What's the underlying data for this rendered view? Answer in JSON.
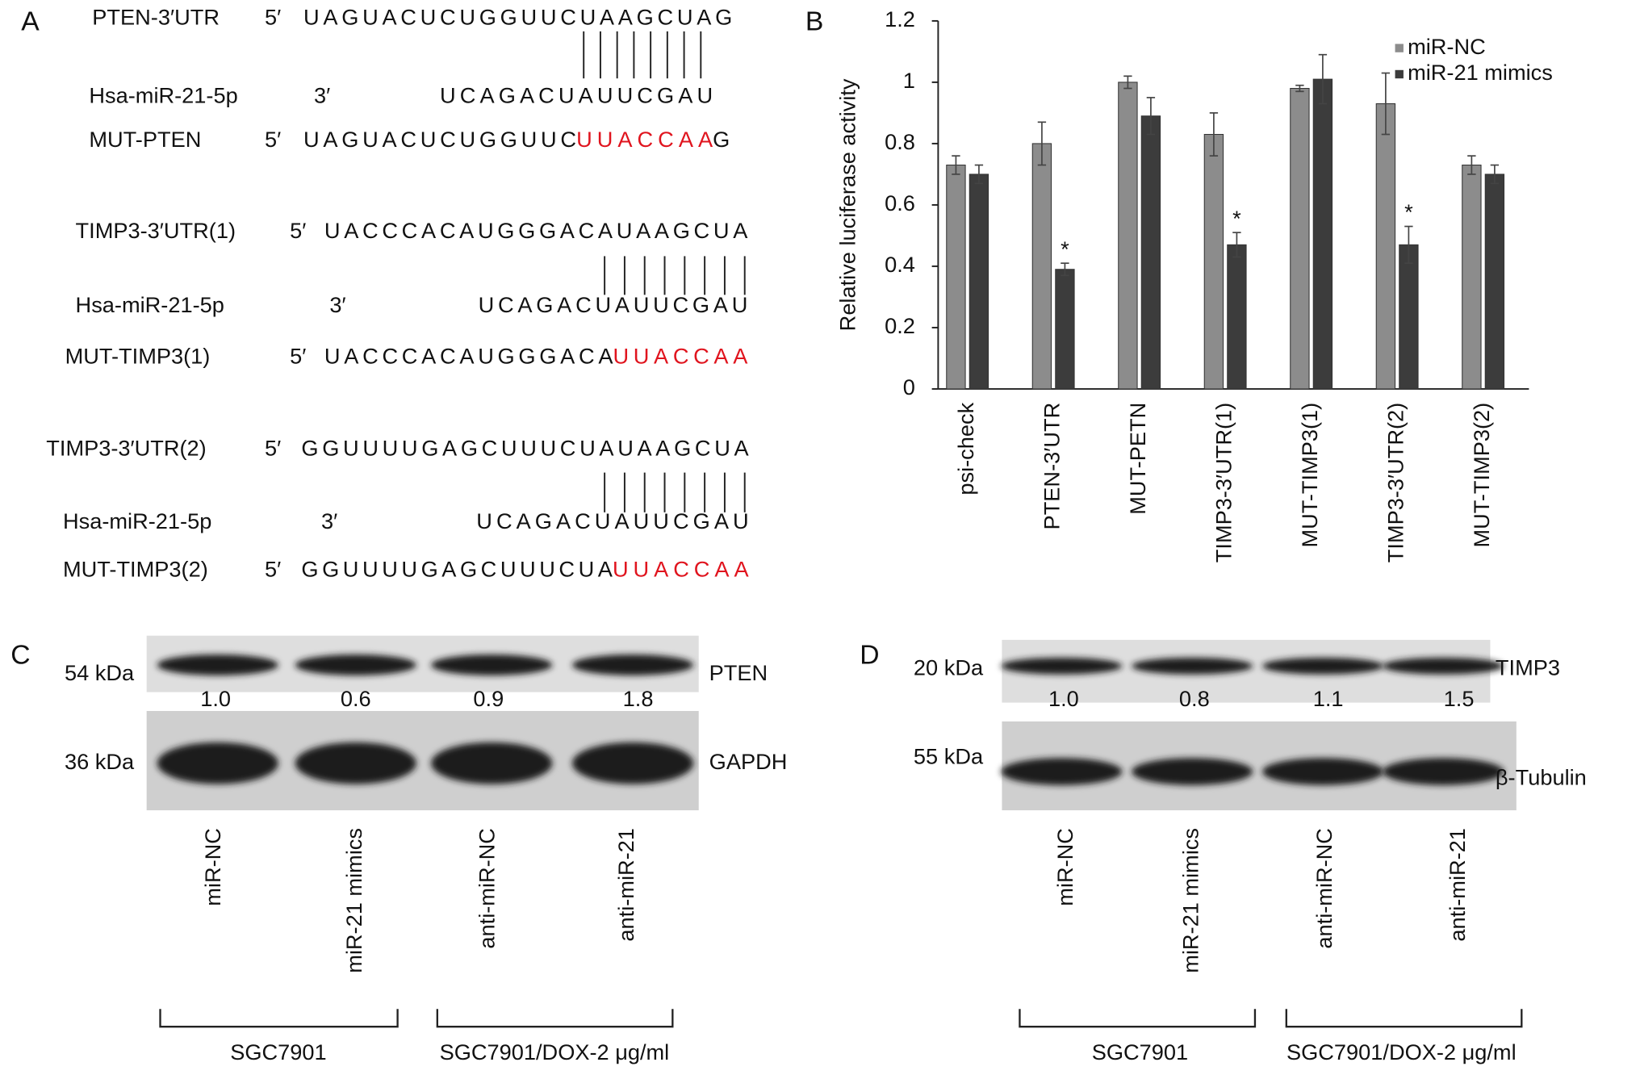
{
  "panel_labels": [
    "A",
    "B",
    "C",
    "D"
  ],
  "alignments": [
    {
      "target": {
        "label": "PTEN-3′UTR",
        "end": "5′",
        "sequence": "UAGUACUCUGGUUCUAAGCUAG"
      },
      "mirna": {
        "label": "Hsa-miR-21-5p",
        "end": "3′",
        "sequence": "UCAGACUAUUCGAU"
      },
      "mutant": {
        "label": "MUT-PTEN",
        "end": "5′",
        "sequence": "UAGUACUCUGGUUC",
        "mutation": "UUACCAA",
        "tail": "G"
      }
    },
    {
      "target": {
        "label": "TIMP3-3′UTR(1)",
        "end": "5′",
        "sequence": "UACCCACAUGGGACAUAAGCUA"
      },
      "mirna": {
        "label": "Hsa-miR-21-5p",
        "end": "3′",
        "sequence": "UCAGACUAUUCGAU"
      },
      "mutant": {
        "label": "MUT-TIMP3(1)",
        "end": "5′",
        "sequence": "UACCCACAUGGGACA",
        "mutation": "UUACCAA"
      }
    },
    {
      "target": {
        "label": "TIMP3-3′UTR(2)",
        "end": "5′",
        "sequence": "GGUUUUGAGCUUUCUAUAAGCUA"
      },
      "mirna": {
        "label": "Hsa-miR-21-5p",
        "end": "3′",
        "sequence": "UCAGACUAUUCGAU"
      },
      "mutant": {
        "label": "MUT-TIMP3(2)",
        "end": "5′",
        "sequence": "GGUUUUGAGCUUUCUA",
        "mutation": "UUACCAA"
      }
    }
  ],
  "chart_data": {
    "type": "bar",
    "y_label": "Relative luciferase activity",
    "categories": [
      "psi-check",
      "PTEN-3′UTR",
      "MUT-PETN",
      "TIMP3-3′UTR(1)",
      "MUT-TIMP3(1)",
      "TIMP3-3′UTR(2)",
      "MUT-TIMP3(2)"
    ],
    "series": [
      {
        "name": "miR-NC",
        "color": "#8c8c8c",
        "values": [
          0.73,
          0.8,
          1.0,
          0.83,
          0.98,
          0.93,
          0.73
        ],
        "errors": [
          0.03,
          0.07,
          0.02,
          0.07,
          0.01,
          0.1,
          0.03
        ]
      },
      {
        "name": "miR-21 mimics",
        "color": "#3c3c3c",
        "values": [
          0.7,
          0.39,
          0.89,
          0.47,
          1.01,
          0.47,
          0.7
        ],
        "errors": [
          0.03,
          0.02,
          0.06,
          0.04,
          0.08,
          0.06,
          0.03
        ],
        "annotations": [
          null,
          "*",
          null,
          "*",
          null,
          "*",
          null
        ]
      }
    ],
    "ylim": [
      0,
      1.2
    ],
    "yticks": [
      0,
      0.2,
      0.4,
      0.6,
      0.8,
      1,
      1.2
    ],
    "legend": "upper right"
  },
  "blots": [
    {
      "bands": [
        {
          "size": "54 kDa",
          "protein": "PTEN",
          "quantification": [
            "1.0",
            "0.6",
            "0.9",
            "1.8"
          ]
        },
        {
          "size": "36 kDa",
          "protein": "GAPDH"
        }
      ],
      "lanes": [
        "miR-NC",
        "miR-21 mimics",
        "anti-miR-NC",
        "anti-miR-21"
      ],
      "groups": [
        "SGC7901",
        "SGC7901/DOX-2 μg/ml"
      ]
    },
    {
      "bands": [
        {
          "size": "20 kDa",
          "protein": "TIMP3",
          "quantification": [
            "1.0",
            "0.8",
            "1.1",
            "1.5"
          ]
        },
        {
          "size": "55 kDa",
          "protein": "β-Tubulin"
        }
      ],
      "lanes": [
        "miR-NC",
        "miR-21 mimics",
        "anti-miR-NC",
        "anti-miR-21"
      ],
      "groups": [
        "SGC7901",
        "SGC7901/DOX-2 μg/ml"
      ]
    }
  ]
}
